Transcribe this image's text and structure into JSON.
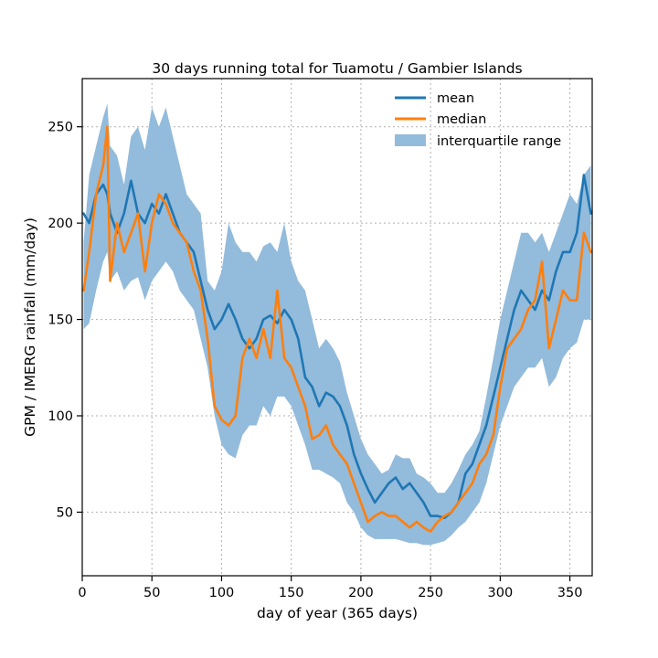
{
  "chart_data": {
    "type": "line",
    "title": "30 days running total for Tuamotu / Gambier Islands",
    "xlabel": "day of year (365 days)",
    "ylabel": "GPM / IMERG rainfall (mm/day)",
    "xlim": [
      0,
      366
    ],
    "ylim": [
      17,
      275
    ],
    "xticks": [
      0,
      50,
      100,
      150,
      200,
      250,
      300,
      350
    ],
    "yticks": [
      50,
      100,
      150,
      200,
      250
    ],
    "grid": true,
    "legend_position": "upper-right",
    "legend": {
      "mean": "mean",
      "median": "median",
      "iqr": "interquartile range"
    },
    "colors": {
      "mean": "#1f77b4",
      "median": "#ff7f0e",
      "iqr": "#93bbdb",
      "grid": "#b0b0b0"
    },
    "x": [
      1,
      5,
      10,
      15,
      18,
      20,
      25,
      30,
      35,
      40,
      45,
      50,
      55,
      60,
      65,
      70,
      75,
      80,
      85,
      90,
      95,
      100,
      105,
      110,
      115,
      120,
      125,
      130,
      135,
      140,
      145,
      150,
      155,
      160,
      165,
      170,
      175,
      180,
      185,
      190,
      195,
      200,
      205,
      210,
      215,
      220,
      225,
      230,
      235,
      240,
      245,
      250,
      255,
      260,
      265,
      270,
      275,
      280,
      285,
      290,
      295,
      300,
      305,
      310,
      315,
      320,
      325,
      330,
      335,
      340,
      345,
      350,
      355,
      360,
      365
    ],
    "series": [
      {
        "name": "mean",
        "values": [
          205,
          200,
          215,
          220,
          215,
          205,
          195,
          205,
          222,
          205,
          200,
          210,
          205,
          215,
          205,
          195,
          190,
          185,
          170,
          155,
          145,
          150,
          158,
          150,
          140,
          135,
          140,
          150,
          152,
          148,
          155,
          150,
          140,
          120,
          115,
          105,
          112,
          110,
          105,
          95,
          80,
          70,
          62,
          55,
          60,
          65,
          68,
          62,
          65,
          60,
          55,
          48,
          48,
          47,
          50,
          55,
          70,
          75,
          85,
          95,
          110,
          125,
          140,
          155,
          165,
          160,
          155,
          165,
          160,
          175,
          185,
          185,
          195,
          225,
          205
        ]
      },
      {
        "name": "median",
        "values": [
          165,
          185,
          215,
          230,
          250,
          170,
          200,
          185,
          195,
          205,
          175,
          200,
          215,
          210,
          200,
          195,
          190,
          175,
          165,
          140,
          105,
          98,
          95,
          100,
          130,
          140,
          130,
          145,
          130,
          165,
          130,
          125,
          115,
          105,
          88,
          90,
          95,
          85,
          80,
          75,
          65,
          55,
          45,
          48,
          50,
          48,
          48,
          45,
          42,
          45,
          42,
          40,
          45,
          48,
          50,
          55,
          60,
          65,
          75,
          80,
          90,
          115,
          135,
          140,
          145,
          155,
          160,
          180,
          135,
          150,
          165,
          160,
          160,
          195,
          185
        ]
      }
    ],
    "iqr_low": [
      145,
      148,
      165,
      180,
      185,
      170,
      175,
      165,
      170,
      172,
      160,
      170,
      175,
      180,
      175,
      165,
      160,
      155,
      140,
      125,
      100,
      85,
      80,
      78,
      90,
      95,
      95,
      105,
      100,
      110,
      110,
      105,
      95,
      85,
      72,
      72,
      70,
      68,
      65,
      55,
      50,
      42,
      38,
      36,
      36,
      36,
      36,
      35,
      34,
      34,
      33,
      33,
      34,
      35,
      38,
      42,
      45,
      50,
      55,
      65,
      80,
      95,
      105,
      115,
      120,
      125,
      125,
      130,
      115,
      120,
      130,
      135,
      138,
      150,
      150
    ],
    "iqr_high": [
      190,
      225,
      240,
      255,
      262,
      240,
      235,
      220,
      245,
      250,
      238,
      260,
      250,
      260,
      245,
      230,
      215,
      210,
      205,
      170,
      165,
      175,
      200,
      190,
      185,
      185,
      180,
      188,
      190,
      185,
      200,
      180,
      170,
      165,
      150,
      135,
      140,
      135,
      128,
      112,
      100,
      88,
      80,
      75,
      70,
      72,
      80,
      78,
      78,
      70,
      68,
      65,
      60,
      60,
      65,
      72,
      80,
      85,
      92,
      110,
      130,
      150,
      165,
      180,
      195,
      195,
      190,
      195,
      185,
      195,
      205,
      215,
      210,
      225,
      230
    ]
  }
}
